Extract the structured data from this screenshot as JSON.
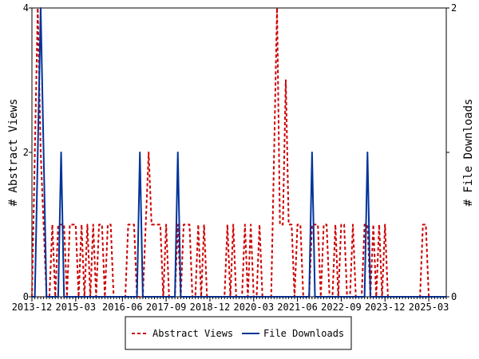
{
  "chart_data": {
    "type": "line",
    "ylabel_left": "# Abstract Views",
    "ylabel_right": "# File Downloads",
    "y_left_range": [
      0,
      4
    ],
    "y_right_range": [
      0,
      2
    ],
    "y_left_ticks": [
      "0",
      "2",
      "4"
    ],
    "y_right_ticks": [
      "0",
      "1",
      "2"
    ],
    "x_range": [
      0,
      142
    ],
    "x_ticks": [
      {
        "index": 0,
        "label": "2013-12"
      },
      {
        "index": 15,
        "label": "2015-03"
      },
      {
        "index": 31,
        "label": "2016-06"
      },
      {
        "index": 46,
        "label": "2017-09"
      },
      {
        "index": 61,
        "label": "2018-12"
      },
      {
        "index": 76,
        "label": "2020-03"
      },
      {
        "index": 91,
        "label": "2021-06"
      },
      {
        "index": 106,
        "label": "2022-09"
      },
      {
        "index": 121,
        "label": "2023-12"
      },
      {
        "index": 136,
        "label": "2025-03"
      }
    ],
    "series": [
      {
        "name": "Abstract Views",
        "color": "#cc0000",
        "dashed": true,
        "axis": "left",
        "values": [
          0,
          2,
          4,
          2,
          1,
          0,
          0,
          1,
          0,
          1,
          1,
          1,
          0,
          1,
          1,
          1,
          0,
          1,
          0,
          1,
          0,
          1,
          0,
          1,
          1,
          0,
          1,
          1,
          0,
          0,
          0,
          0,
          0,
          1,
          1,
          1,
          0,
          0,
          0,
          1,
          2,
          1,
          1,
          1,
          1,
          0,
          1,
          0,
          0,
          0,
          1,
          0,
          1,
          1,
          1,
          0,
          0,
          1,
          0,
          1,
          0,
          0,
          0,
          0,
          0,
          0,
          0,
          1,
          0,
          1,
          0,
          0,
          0,
          1,
          0,
          1,
          0,
          0,
          1,
          0,
          0,
          0,
          0,
          2,
          4,
          1,
          1,
          3,
          1,
          1,
          0,
          1,
          1,
          0,
          0,
          0,
          1,
          1,
          1,
          0,
          1,
          1,
          0,
          0,
          1,
          0,
          1,
          1,
          0,
          0,
          1,
          0,
          0,
          0,
          1,
          1,
          0,
          1,
          0,
          1,
          0,
          1,
          0,
          0,
          0,
          0,
          0,
          0,
          0,
          0,
          0,
          0,
          0,
          0,
          1,
          1,
          0,
          0,
          0,
          0,
          0,
          0,
          0
        ]
      },
      {
        "name": "File Downloads",
        "color": "#003399",
        "dashed": false,
        "axis": "right",
        "values": [
          0,
          0,
          1,
          2,
          1,
          0,
          0,
          0,
          0,
          0,
          1,
          0,
          0,
          0,
          0,
          0,
          0,
          0,
          0,
          0,
          0,
          0,
          0,
          0,
          0,
          0,
          0,
          0,
          0,
          0,
          0,
          0,
          0,
          0,
          0,
          0,
          0,
          1,
          0,
          0,
          0,
          0,
          0,
          0,
          0,
          0,
          0,
          0,
          0,
          0,
          1,
          0,
          0,
          0,
          0,
          0,
          0,
          0,
          0,
          0,
          0,
          0,
          0,
          0,
          0,
          0,
          0,
          0,
          0,
          0,
          0,
          0,
          0,
          0,
          0,
          0,
          0,
          0,
          0,
          0,
          0,
          0,
          0,
          0,
          0,
          0,
          0,
          0,
          0,
          0,
          0,
          0,
          0,
          0,
          0,
          0,
          1,
          0,
          0,
          0,
          0,
          0,
          0,
          0,
          0,
          0,
          0,
          0,
          0,
          0,
          0,
          0,
          0,
          0,
          0,
          1,
          0,
          0,
          0,
          0,
          0,
          0,
          0,
          0,
          0,
          0,
          0,
          0,
          0,
          0,
          0,
          0,
          0,
          0,
          0,
          0,
          0,
          0,
          0,
          0,
          0,
          0,
          0
        ]
      }
    ],
    "legend_position": "bottom"
  }
}
